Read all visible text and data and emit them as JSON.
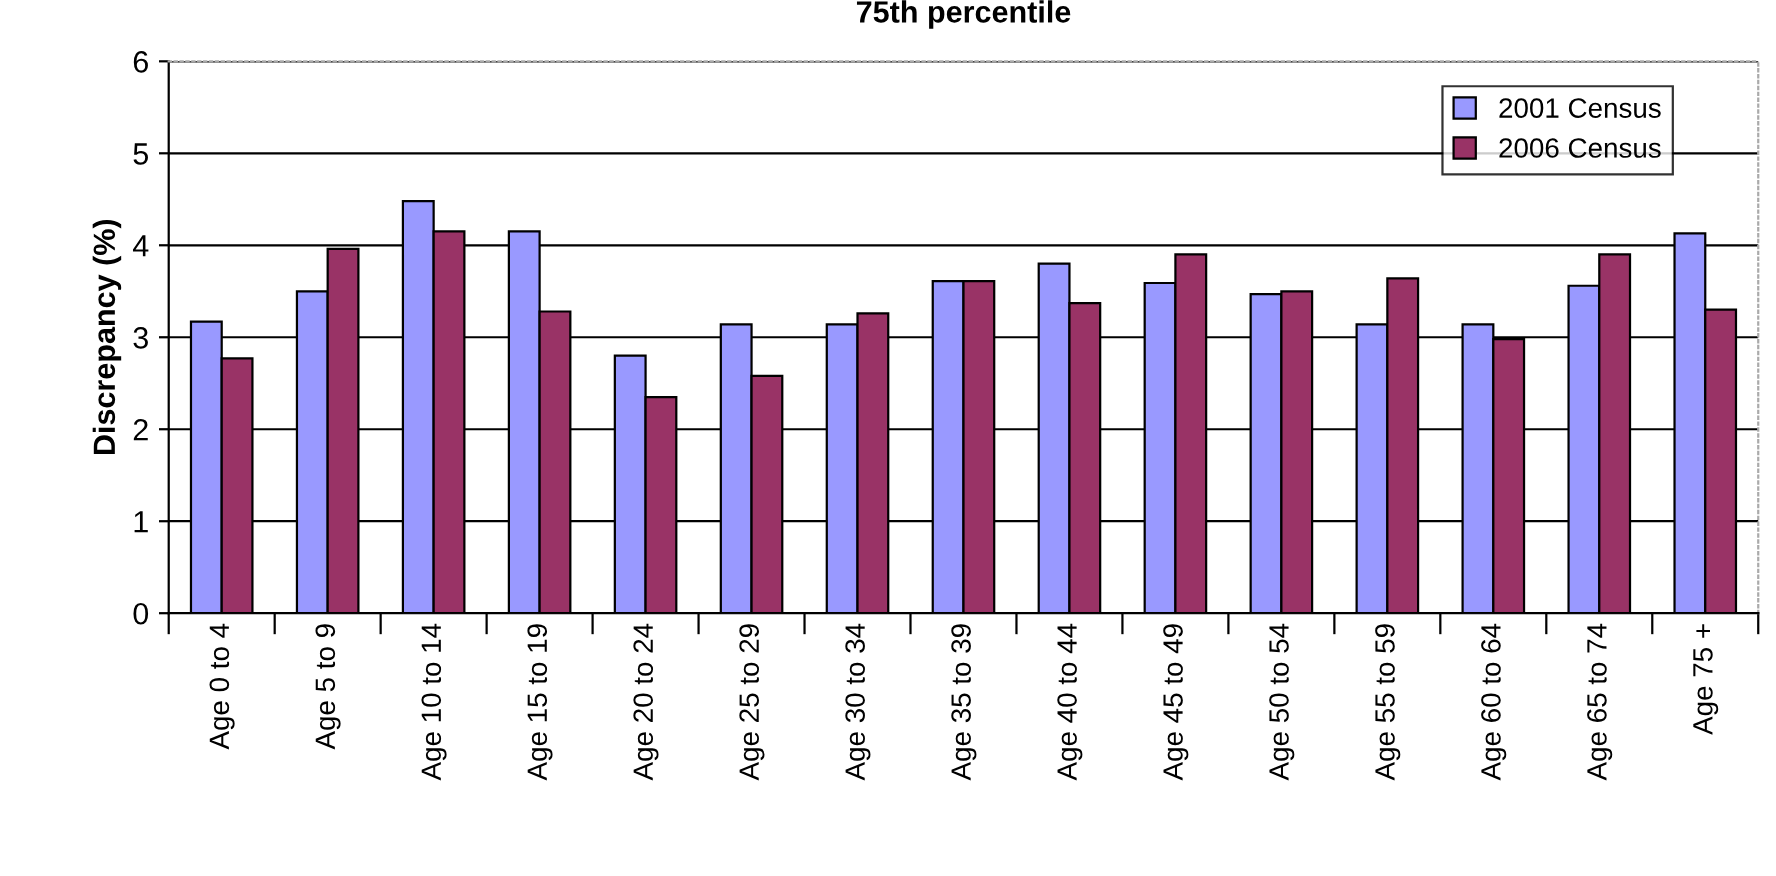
{
  "chart_data": {
    "type": "bar",
    "title": "75th percentile",
    "ylabel": "Discrepancy (%)",
    "categories": [
      "Age 0 to 4",
      "Age 5 to 9",
      "Age 10 to 14",
      "Age 15 to 19",
      "Age 20 to 24",
      "Age 25 to 29",
      "Age 30 to 34",
      "Age 35 to 39",
      "Age 40 to 44",
      "Age 45 to 49",
      "Age 50 to 54",
      "Age 55 to 59",
      "Age 60 to 64",
      "Age 65 to 74",
      "Age 75 +"
    ],
    "series": [
      {
        "name": "2001 Census",
        "color": "#9999ff",
        "values": [
          3.17,
          3.5,
          4.48,
          4.15,
          2.8,
          3.14,
          3.14,
          3.61,
          3.8,
          3.59,
          3.47,
          3.14,
          3.14,
          3.56,
          4.13
        ]
      },
      {
        "name": "2006 Census",
        "color": "#993366",
        "values": [
          2.77,
          3.96,
          4.15,
          3.28,
          2.35,
          2.58,
          3.26,
          3.61,
          3.37,
          3.9,
          3.5,
          3.64,
          2.98,
          3.9,
          3.3
        ]
      }
    ],
    "ylim": [
      0,
      6
    ],
    "yticks": [
      0,
      1,
      2,
      3,
      4,
      5,
      6
    ],
    "grid": "y",
    "legend": "top right"
  }
}
